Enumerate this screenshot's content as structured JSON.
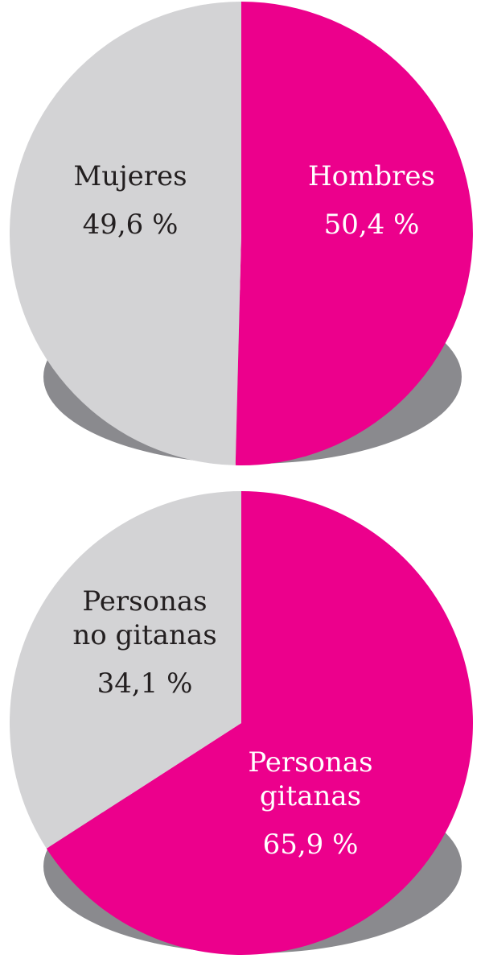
{
  "colors": {
    "primary": "#EC008C",
    "secondary": "#D3D3D5",
    "shadow": "#8A8A8E",
    "text_on_secondary": "#231F20",
    "text_on_primary": "#FFFFFF"
  },
  "chart_data": [
    {
      "type": "pie",
      "title": "",
      "slices": [
        {
          "label": "Hombres",
          "value": 50.4,
          "value_label": "50,4 %",
          "color": "#EC008C"
        },
        {
          "label": "Mujeres",
          "value": 49.6,
          "value_label": "49,6 %",
          "color": "#D3D3D5"
        }
      ]
    },
    {
      "type": "pie",
      "title": "",
      "slices": [
        {
          "label": "Personas gitanas",
          "label_lines": [
            "Personas",
            "gitanas"
          ],
          "value": 65.9,
          "value_label": "65,9 %",
          "color": "#EC008C"
        },
        {
          "label": "Personas no gitanas",
          "label_lines": [
            "Personas",
            "no gitanas"
          ],
          "value": 34.1,
          "value_label": "34,1 %",
          "color": "#D3D3D5"
        }
      ]
    }
  ]
}
